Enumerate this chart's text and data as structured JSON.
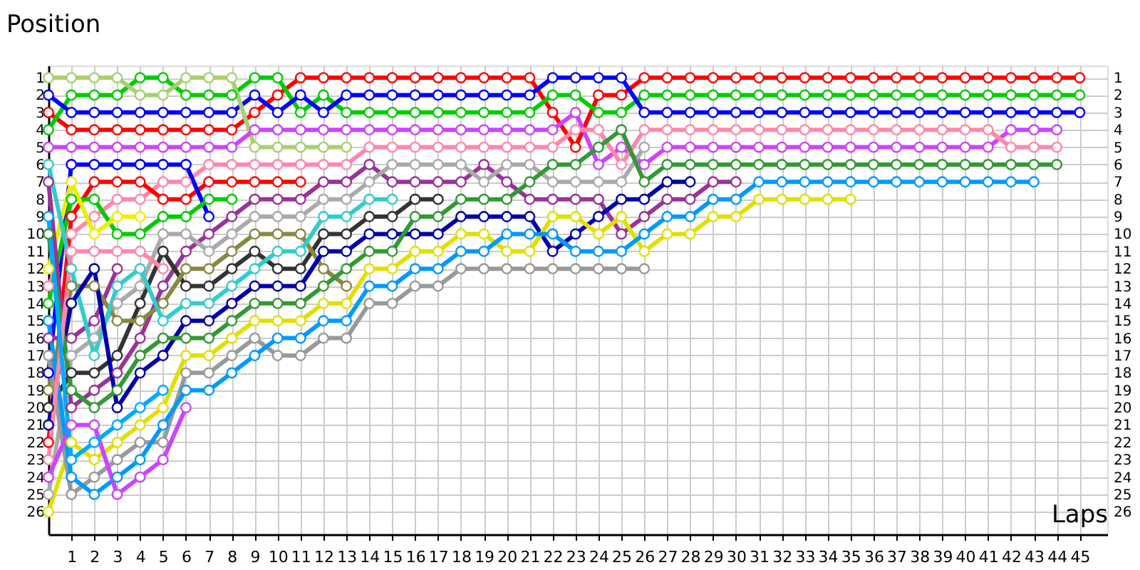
{
  "chart_data": {
    "type": "line",
    "ylabel": "Position",
    "xlabel": "Laps",
    "x": [
      0,
      1,
      2,
      3,
      4,
      5,
      6,
      7,
      8,
      9,
      10,
      11,
      12,
      13,
      14,
      15,
      16,
      17,
      18,
      19,
      20,
      21,
      22,
      23,
      24,
      25,
      26,
      27,
      28,
      29,
      30,
      31,
      32,
      33,
      34,
      35,
      36,
      37,
      38,
      39,
      40,
      41,
      42,
      43,
      44,
      45
    ],
    "xlim": [
      0,
      46.2
    ],
    "xticks": [
      1,
      2,
      3,
      4,
      5,
      6,
      7,
      8,
      9,
      10,
      11,
      12,
      13,
      14,
      15,
      16,
      17,
      18,
      19,
      20,
      21,
      22,
      23,
      24,
      25,
      26,
      27,
      28,
      29,
      30,
      31,
      32,
      33,
      34,
      35,
      36,
      37,
      38,
      39,
      40,
      41,
      42,
      43,
      44,
      45
    ],
    "ylim": [
      27.3,
      0.3
    ],
    "yticks": [
      1,
      2,
      3,
      4,
      5,
      6,
      7,
      8,
      9,
      10,
      11,
      12,
      13,
      14,
      15,
      16,
      17,
      18,
      19,
      20,
      21,
      22,
      23,
      24,
      25,
      26
    ],
    "y2lim": [
      27.3,
      0.3
    ],
    "y2ticks": [
      1,
      2,
      3,
      4,
      5,
      6,
      7,
      8,
      9,
      10,
      11,
      12,
      13,
      14,
      15,
      16,
      17,
      18,
      19,
      20,
      21,
      22,
      23,
      24,
      25,
      26
    ],
    "grid": true,
    "legend": false,
    "marker": "circle",
    "line_style": "solid",
    "series": [
      {
        "color": "#ff0000",
        "values": [
          3,
          4,
          4,
          4,
          4,
          4,
          4,
          4,
          4,
          3,
          2,
          1,
          1,
          1,
          1,
          1,
          1,
          1,
          1,
          1,
          1,
          1,
          3,
          5,
          2,
          2,
          1,
          1,
          1,
          1,
          1,
          1,
          1,
          1,
          1,
          1,
          1,
          1,
          1,
          1,
          1,
          1,
          1,
          1,
          1,
          1
        ]
      },
      {
        "color": "#00cc00",
        "values": [
          4,
          2,
          2,
          2,
          1,
          1,
          2,
          2,
          2,
          1,
          1,
          3,
          2,
          3,
          3,
          3,
          3,
          3,
          3,
          3,
          3,
          3,
          2,
          2,
          3,
          3,
          2,
          2,
          2,
          2,
          2,
          2,
          2,
          2,
          2,
          2,
          2,
          2,
          2,
          2,
          2,
          2,
          2,
          2,
          2,
          2
        ]
      },
      {
        "color": "#0000ff",
        "values": [
          2,
          3,
          3,
          3,
          3,
          3,
          3,
          3,
          3,
          2,
          3,
          2,
          3,
          2,
          2,
          2,
          2,
          2,
          2,
          2,
          2,
          2,
          1,
          1,
          1,
          1,
          3,
          3,
          3,
          3,
          3,
          3,
          3,
          3,
          3,
          3,
          3,
          3,
          3,
          3,
          3,
          3,
          3,
          3,
          3,
          3
        ]
      },
      {
        "color": "#a8d070",
        "values": [
          1,
          1,
          1,
          1,
          2,
          2,
          1,
          1,
          1,
          5,
          5,
          5,
          5,
          5,
          null,
          null,
          null,
          null,
          null,
          null,
          null,
          null,
          null,
          null,
          null,
          null,
          null,
          null,
          null,
          null,
          null,
          null,
          null,
          null,
          null,
          null,
          null,
          null,
          null,
          null,
          null,
          null,
          null,
          null,
          null,
          null
        ]
      },
      {
        "color": "#cc44ff",
        "values": [
          5,
          5,
          5,
          5,
          5,
          5,
          5,
          5,
          5,
          4,
          4,
          4,
          4,
          4,
          4,
          4,
          4,
          4,
          4,
          4,
          4,
          4,
          4,
          3,
          6,
          5,
          6,
          5,
          5,
          5,
          5,
          5,
          5,
          5,
          5,
          5,
          5,
          5,
          5,
          5,
          5,
          5,
          4,
          4,
          4,
          null
        ]
      },
      {
        "color": "#ff88aa",
        "values": [
          13,
          10,
          9,
          8,
          8,
          7,
          7,
          6,
          6,
          6,
          6,
          6,
          6,
          6,
          5,
          5,
          5,
          5,
          5,
          5,
          5,
          5,
          5,
          4,
          4,
          6,
          4,
          4,
          4,
          4,
          4,
          4,
          4,
          4,
          4,
          4,
          4,
          4,
          4,
          4,
          4,
          4,
          5,
          5,
          5,
          null
        ]
      },
      {
        "color": "#ff0000",
        "values": [
          22,
          9,
          7,
          7,
          7,
          8,
          8,
          7,
          7,
          7,
          7,
          7,
          null,
          null,
          null,
          null,
          null,
          null,
          null,
          null,
          null,
          null,
          null,
          null,
          null,
          null,
          null,
          null,
          null,
          null,
          null,
          null,
          null,
          null,
          null,
          null,
          null,
          null,
          null,
          null,
          null,
          null,
          null,
          null,
          null,
          null
        ]
      },
      {
        "color": "#0000ff",
        "values": [
          18,
          6,
          6,
          6,
          6,
          6,
          6,
          9,
          null,
          null,
          null,
          null,
          null,
          null,
          null,
          null,
          null,
          null,
          null,
          null,
          null,
          null,
          null,
          null,
          null,
          null,
          null,
          null,
          null,
          null,
          null,
          null,
          null,
          null,
          null,
          null,
          null,
          null,
          null,
          null,
          null,
          null,
          null,
          null,
          null,
          null
        ]
      },
      {
        "color": "#00cc00",
        "values": [
          14,
          8,
          8,
          10,
          10,
          9,
          9,
          8,
          8,
          null,
          null,
          null,
          null,
          null,
          null,
          null,
          null,
          null,
          null,
          null,
          null,
          null,
          null,
          null,
          null,
          null,
          null,
          null,
          null,
          null,
          null,
          null,
          null,
          null,
          null,
          null,
          null,
          null,
          null,
          null,
          null,
          null,
          null,
          null,
          null,
          null
        ]
      },
      {
        "color": "#eeee00",
        "values": [
          12,
          7,
          10,
          9,
          9,
          null,
          null,
          null,
          null,
          null,
          null,
          null,
          null,
          null,
          null,
          null,
          null,
          null,
          null,
          null,
          null,
          null,
          null,
          null,
          null,
          null,
          null,
          null,
          null,
          null,
          null,
          null,
          null,
          null,
          null,
          null,
          null,
          null,
          null,
          null,
          null,
          null,
          null,
          null,
          null,
          null
        ]
      },
      {
        "color": "#993399",
        "values": [
          7,
          20,
          19,
          18,
          16,
          13,
          11,
          10,
          9,
          8,
          8,
          8,
          7,
          7,
          6,
          7,
          7,
          7,
          7,
          6,
          7,
          8,
          8,
          8,
          8,
          10,
          9,
          8,
          8,
          7,
          7,
          null,
          null,
          null,
          null,
          null,
          null,
          null,
          null,
          null,
          null,
          null,
          null,
          null,
          null,
          null
        ]
      },
      {
        "color": "#993399",
        "values": [
          16,
          16,
          15,
          12,
          null,
          null,
          null,
          null,
          null,
          null,
          null,
          null,
          null,
          null,
          null,
          null,
          null,
          null,
          null,
          null,
          null,
          null,
          null,
          null,
          null,
          null,
          null,
          null,
          null,
          null,
          null,
          null,
          null,
          null,
          null,
          null,
          null,
          null,
          null,
          null,
          null,
          null,
          null,
          null,
          null,
          null
        ]
      },
      {
        "color": "#aaaaaa",
        "values": [
          25,
          17,
          16,
          14,
          13,
          10,
          10,
          11,
          10,
          9,
          9,
          9,
          8,
          8,
          7,
          6,
          6,
          6,
          6,
          7,
          6,
          6,
          7,
          7,
          7,
          7,
          5,
          null,
          null,
          null,
          null,
          null,
          null,
          null,
          null,
          null,
          null,
          null,
          null,
          null,
          null,
          null,
          null,
          null,
          null,
          null
        ]
      },
      {
        "color": "#333333",
        "values": [
          20,
          18,
          18,
          17,
          14,
          11,
          13,
          13,
          12,
          11,
          12,
          12,
          10,
          10,
          9,
          9,
          8,
          8,
          null,
          null,
          null,
          null,
          null,
          null,
          null,
          null,
          null,
          null,
          null,
          null,
          null,
          null,
          null,
          null,
          null,
          null,
          null,
          null,
          null,
          null,
          null,
          null,
          null,
          null,
          null,
          null
        ]
      },
      {
        "color": "#888844",
        "values": [
          19,
          13,
          13,
          15,
          15,
          14,
          12,
          12,
          11,
          10,
          10,
          10,
          12,
          13,
          null,
          null,
          null,
          null,
          null,
          null,
          null,
          null,
          null,
          null,
          null,
          null,
          null,
          null,
          null,
          null,
          null,
          null,
          null,
          null,
          null,
          null,
          null,
          null,
          null,
          null,
          null,
          null,
          null,
          null,
          null,
          null
        ]
      },
      {
        "color": "#33cccc",
        "values": [
          6,
          12,
          17,
          13,
          12,
          15,
          14,
          14,
          13,
          12,
          11,
          11,
          9,
          9,
          8,
          8,
          null,
          null,
          null,
          null,
          null,
          null,
          null,
          null,
          null,
          null,
          null,
          null,
          null,
          null,
          null,
          null,
          null,
          null,
          null,
          null,
          null,
          null,
          null,
          null,
          null,
          null,
          null,
          null,
          null,
          null
        ]
      },
      {
        "color": "#0000aa",
        "values": [
          21,
          14,
          12,
          20,
          18,
          17,
          15,
          15,
          14,
          13,
          13,
          13,
          11,
          11,
          10,
          10,
          10,
          10,
          9,
          9,
          9,
          9,
          11,
          10,
          9,
          8,
          8,
          7,
          7,
          null,
          null,
          null,
          null,
          null,
          null,
          null,
          null,
          null,
          null,
          null,
          null,
          null,
          null,
          null,
          null,
          null
        ]
      },
      {
        "color": "#339933",
        "values": [
          10,
          19,
          20,
          19,
          17,
          16,
          16,
          16,
          15,
          14,
          14,
          14,
          13,
          12,
          11,
          11,
          9,
          9,
          8,
          8,
          8,
          7,
          6,
          6,
          5,
          4,
          7,
          6,
          6,
          6,
          6,
          6,
          6,
          6,
          6,
          6,
          6,
          6,
          6,
          6,
          6,
          6,
          6,
          6,
          6,
          null
        ]
      },
      {
        "color": "#e0e000",
        "values": [
          26,
          22,
          23,
          22,
          21,
          20,
          17,
          17,
          16,
          15,
          15,
          15,
          14,
          14,
          12,
          12,
          11,
          11,
          10,
          10,
          11,
          11,
          9,
          9,
          10,
          9,
          11,
          10,
          10,
          9,
          9,
          8,
          8,
          8,
          8,
          8,
          null,
          null,
          null,
          null,
          null,
          null,
          null,
          null,
          null,
          null
        ]
      },
      {
        "color": "#999999",
        "values": [
          17,
          25,
          24,
          23,
          22,
          22,
          18,
          18,
          17,
          16,
          17,
          17,
          16,
          16,
          14,
          14,
          13,
          13,
          12,
          12,
          12,
          12,
          12,
          12,
          12,
          12,
          12,
          null,
          null,
          null,
          null,
          null,
          null,
          null,
          null,
          null,
          null,
          null,
          null,
          null,
          null,
          null,
          null,
          null,
          null,
          null
        ]
      },
      {
        "color": "#0099ff",
        "values": [
          15,
          24,
          25,
          24,
          23,
          21,
          19,
          19,
          18,
          17,
          16,
          16,
          15,
          15,
          13,
          13,
          12,
          12,
          11,
          11,
          10,
          10,
          10,
          11,
          11,
          11,
          10,
          9,
          9,
          8,
          8,
          7,
          7,
          7,
          7,
          7,
          7,
          7,
          7,
          7,
          7,
          7,
          7,
          7,
          null,
          null
        ]
      },
      {
        "color": "#cc44ff",
        "values": [
          24,
          21,
          21,
          25,
          24,
          23,
          20,
          null,
          null,
          null,
          null,
          null,
          null,
          null,
          null,
          null,
          null,
          null,
          null,
          null,
          null,
          null,
          null,
          null,
          null,
          null,
          null,
          null,
          null,
          null,
          null,
          null,
          null,
          null,
          null,
          null,
          null,
          null,
          null,
          null,
          null,
          null,
          null,
          null,
          null,
          null
        ]
      },
      {
        "color": "#ff88aa",
        "values": [
          23,
          11,
          11,
          11,
          11,
          12,
          null,
          null,
          null,
          null,
          null,
          null,
          null,
          null,
          null,
          null,
          null,
          null,
          null,
          null,
          null,
          null,
          null,
          null,
          null,
          null,
          null,
          null,
          null,
          null,
          null,
          null,
          null,
          null,
          null,
          null,
          null,
          null,
          null,
          null,
          null,
          null,
          null,
          null,
          null,
          null
        ]
      },
      {
        "color": "#00aaff",
        "values": [
          9,
          23,
          22,
          21,
          20,
          19,
          null,
          null,
          null,
          null,
          null,
          null,
          null,
          null,
          null,
          null,
          null,
          null,
          null,
          null,
          null,
          null,
          null,
          null,
          null,
          null,
          null,
          null,
          null,
          null,
          null,
          null,
          null,
          null,
          null,
          null,
          null,
          null,
          null,
          null,
          null,
          null,
          null,
          null,
          null,
          null
        ]
      }
    ]
  }
}
